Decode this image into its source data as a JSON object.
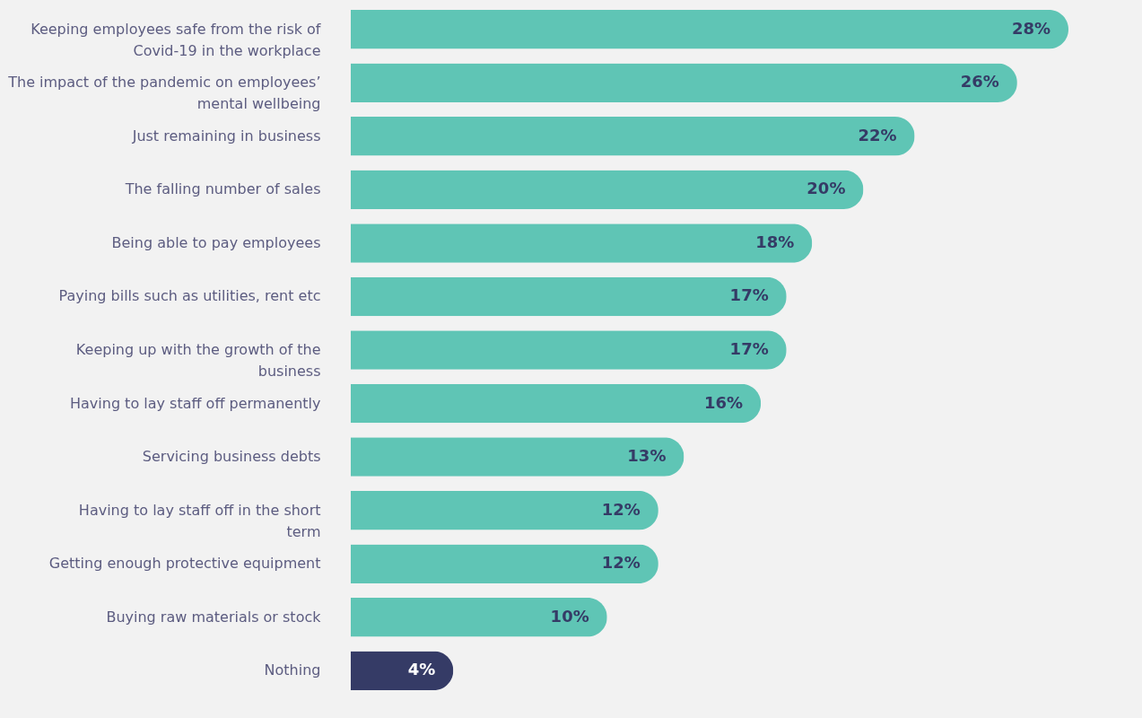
{
  "chart_data": {
    "type": "bar",
    "orientation": "horizontal",
    "categories": [
      "Keeping employees safe from the risk of Covid-19 in the workplace",
      "The impact of the pandemic on employees’ mental wellbeing",
      "Just remaining in business",
      "The falling number of sales",
      "Being able to pay employees",
      "Paying bills such as utilities, rent etc",
      "Keeping up with the growth of the business",
      "Having to lay staff off permanently",
      "Servicing business debts",
      "Having to lay staff off in the short term",
      "Getting enough protective equipment",
      "Buying raw materials or stock",
      "Nothing"
    ],
    "values": [
      28,
      26,
      22,
      20,
      18,
      17,
      17,
      16,
      13,
      12,
      12,
      10,
      4
    ],
    "colors": [
      "#5fc5b5",
      "#5fc5b5",
      "#5fc5b5",
      "#5fc5b5",
      "#5fc5b5",
      "#5fc5b5",
      "#5fc5b5",
      "#5fc5b5",
      "#5fc5b5",
      "#5fc5b5",
      "#5fc5b5",
      "#5fc5b5",
      "#353b66"
    ],
    "value_labels": [
      "28%",
      "26%",
      "22%",
      "20%",
      "18%",
      "17%",
      "17%",
      "16%",
      "13%",
      "12%",
      "12%",
      "10%",
      "4%"
    ]
  }
}
